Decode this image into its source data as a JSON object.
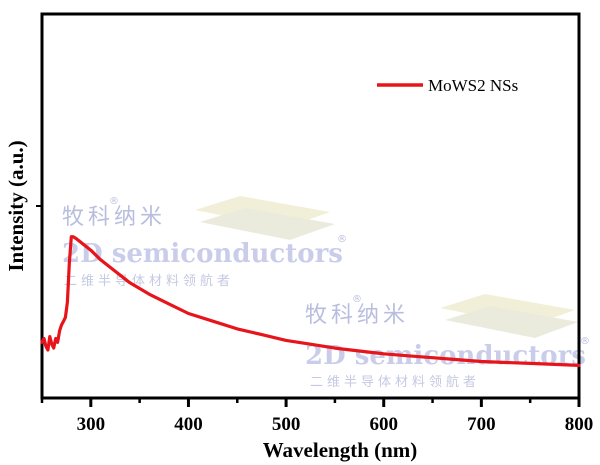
{
  "chart_data": {
    "type": "line",
    "title": "",
    "xlabel": "Wavelength (nm)",
    "ylabel": "Intensity (a.u.)",
    "xlim": [
      250,
      800
    ],
    "ylim": [
      0,
      2
    ],
    "x_ticks": [
      300,
      400,
      500,
      600,
      700,
      800
    ],
    "x_minor_ticks": [
      250,
      350,
      450,
      550,
      650,
      750
    ],
    "y_ticks": [
      1
    ],
    "y_tick_labels_shown": false,
    "grid": false,
    "legend": {
      "position": "top-right",
      "entries": [
        "MoWS2 NSs"
      ]
    },
    "series": [
      {
        "name": "MoWS2 NSs",
        "color": "#e8141c",
        "x": [
          250,
          252,
          254,
          256,
          258,
          260,
          262,
          264,
          266,
          268,
          270,
          272,
          274,
          276,
          278,
          280,
          282,
          285,
          290,
          300,
          310,
          325,
          340,
          360,
          380,
          400,
          425,
          450,
          475,
          500,
          525,
          550,
          575,
          600,
          625,
          650,
          675,
          700,
          725,
          750,
          775,
          800
        ],
        "y": [
          0.29,
          0.31,
          0.27,
          0.25,
          0.32,
          0.28,
          0.26,
          0.31,
          0.29,
          0.35,
          0.38,
          0.4,
          0.42,
          0.5,
          0.7,
          0.84,
          0.84,
          0.83,
          0.81,
          0.77,
          0.72,
          0.66,
          0.6,
          0.54,
          0.49,
          0.44,
          0.4,
          0.36,
          0.33,
          0.3,
          0.28,
          0.26,
          0.245,
          0.23,
          0.22,
          0.21,
          0.2,
          0.19,
          0.185,
          0.18,
          0.175,
          0.17
        ]
      }
    ],
    "annotations": []
  },
  "watermarks": [
    {
      "cn": "牧科纳米",
      "en": "2D semiconductors",
      "cn_sub": "二维半导体材料领航者",
      "reg": "®"
    },
    {
      "cn": "牧科纳米",
      "en": "2D semiconductors",
      "cn_sub": "二维半导体材料领航者",
      "reg": "®"
    }
  ],
  "colors": {
    "axis": "#000000",
    "series": "#e8141c"
  }
}
